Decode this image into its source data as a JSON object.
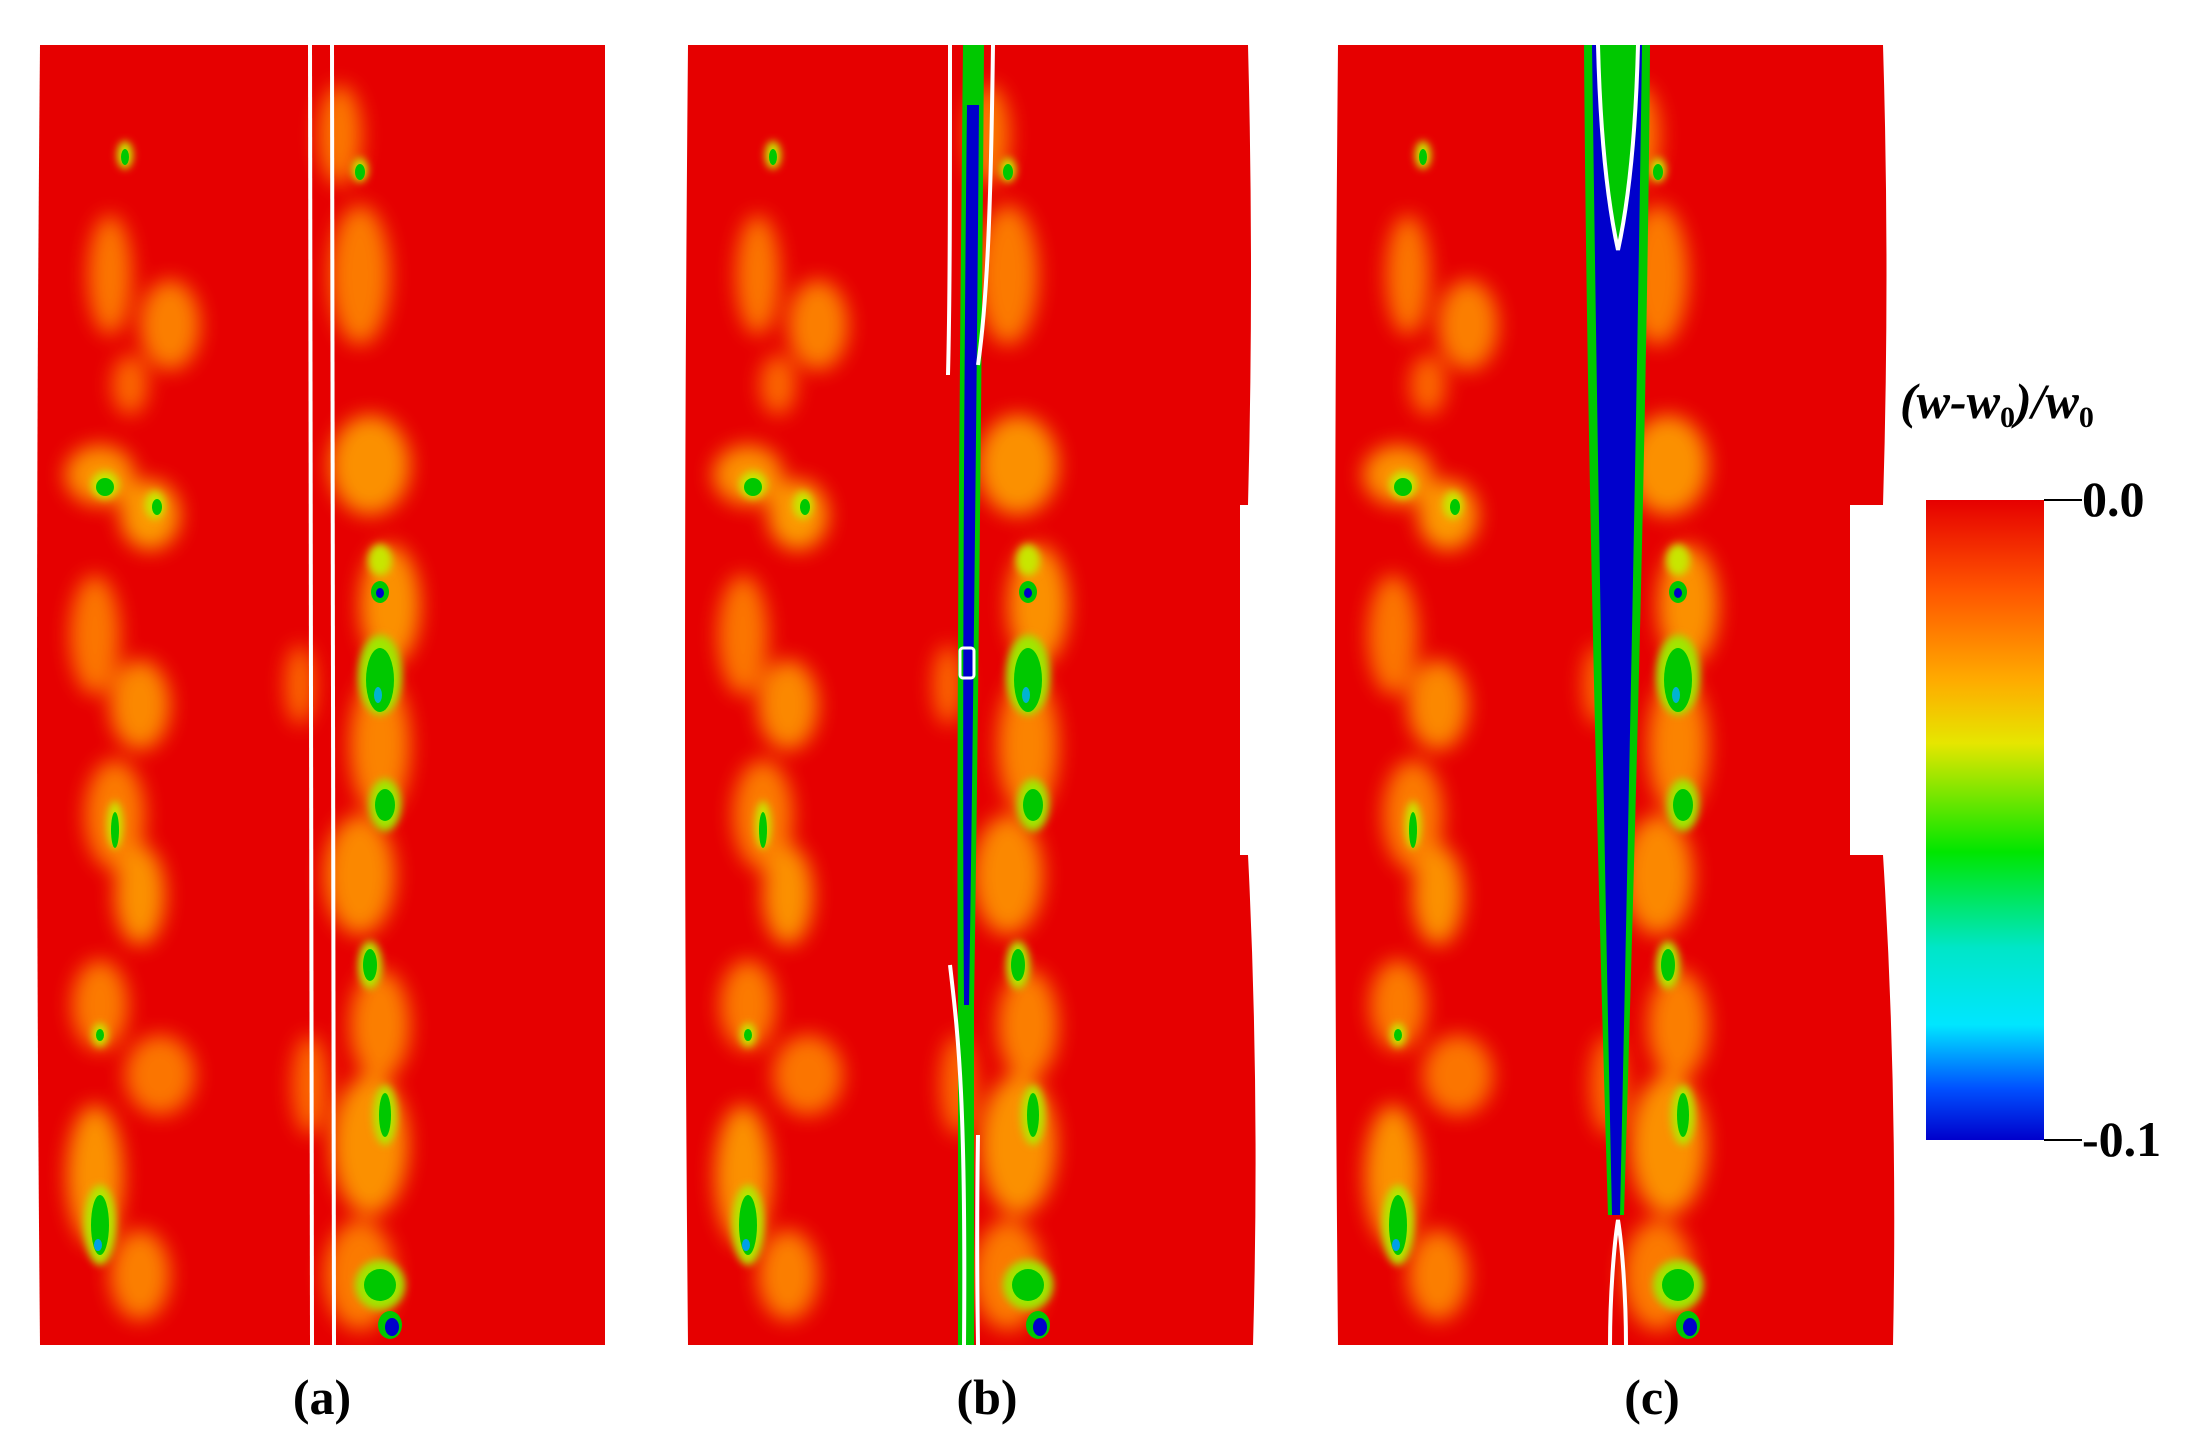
{
  "panels": [
    {
      "id": "a",
      "label": "(a)"
    },
    {
      "id": "b",
      "label": "(b)"
    },
    {
      "id": "c",
      "label": "(c)"
    }
  ],
  "legend": {
    "title_parts": [
      "(w-w",
      "0",
      ")/w",
      "0"
    ],
    "max_label": "0.0",
    "min_label": "-0.1",
    "range": [
      -0.1,
      0.0
    ],
    "colors": [
      "#e60000",
      "#ff5500",
      "#ffaa00",
      "#e6e600",
      "#00e600",
      "#00e6e6",
      "#0050ff",
      "#0000cc"
    ]
  },
  "colors": {
    "field": "#e60000",
    "contour": "#ffffff",
    "background": "#ffffff"
  }
}
